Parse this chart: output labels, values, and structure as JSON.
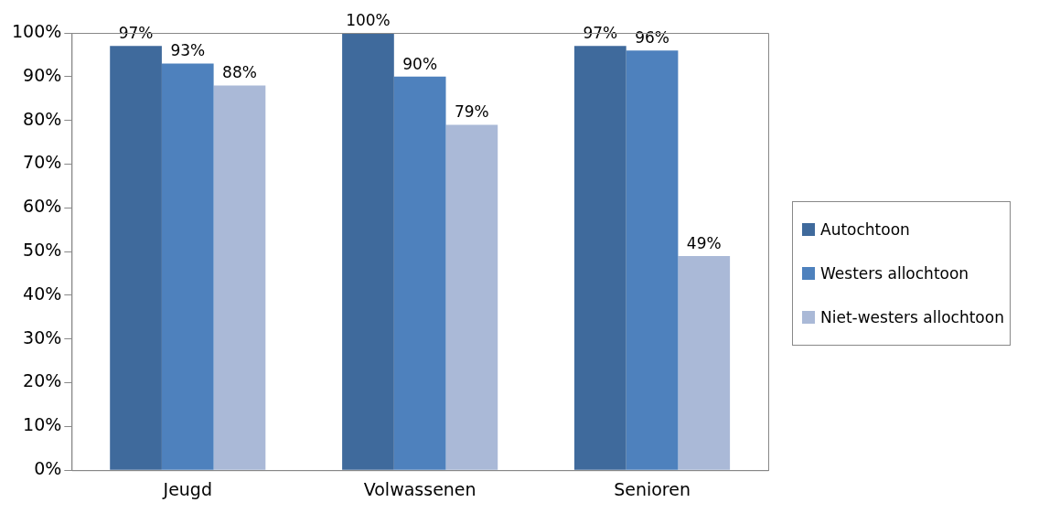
{
  "chart_data": {
    "type": "bar",
    "categories": [
      "Jeugd",
      "Volwassenen",
      "Senioren"
    ],
    "series": [
      {
        "name": "Autochtoon",
        "color": "#3f6a9c",
        "values": [
          97,
          100,
          97
        ],
        "value_labels": [
          "97%",
          "100%",
          "97%"
        ]
      },
      {
        "name": "Westers allochtoon",
        "color": "#4e81bd",
        "values": [
          93,
          90,
          96
        ],
        "value_labels": [
          "93%",
          "90%",
          "96%"
        ]
      },
      {
        "name": "Niet-westers allochtoon",
        "color": "#aab9d7",
        "values": [
          88,
          79,
          49
        ],
        "value_labels": [
          "88%",
          "79%",
          "49%"
        ]
      }
    ],
    "ylim": [
      0,
      100
    ],
    "yticks": [
      {
        "value": 0,
        "label": "0%"
      },
      {
        "value": 10,
        "label": "10%"
      },
      {
        "value": 20,
        "label": "20%"
      },
      {
        "value": 30,
        "label": "30%"
      },
      {
        "value": 40,
        "label": "40%"
      },
      {
        "value": 50,
        "label": "50%"
      },
      {
        "value": 60,
        "label": "60%"
      },
      {
        "value": 70,
        "label": "70%"
      },
      {
        "value": 80,
        "label": "80%"
      },
      {
        "value": 90,
        "label": "90%"
      },
      {
        "value": 100,
        "label": "100%"
      }
    ],
    "grid": false,
    "legend": "right"
  }
}
